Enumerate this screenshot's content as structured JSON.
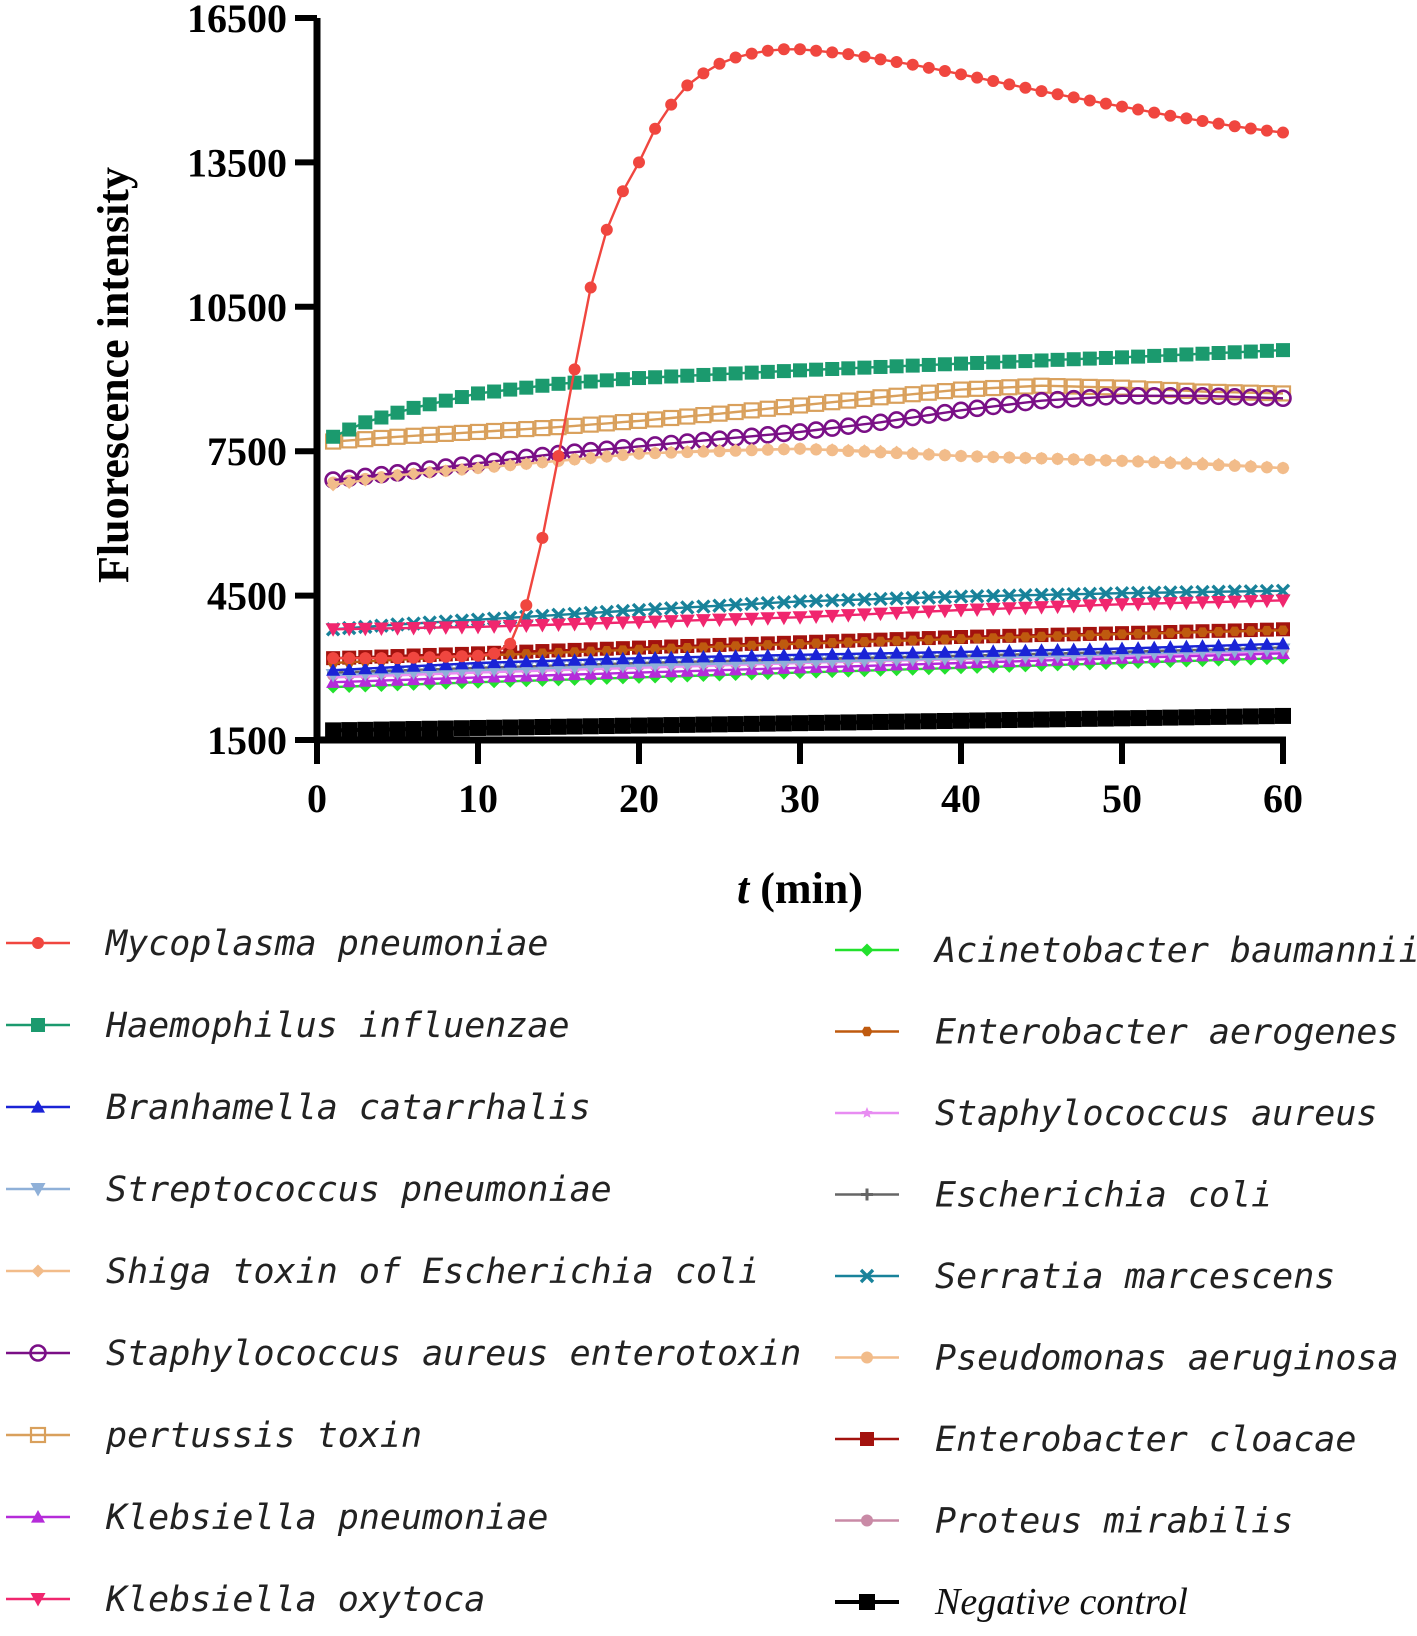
{
  "chart_data": {
    "type": "line",
    "title": "",
    "xlabel_italic": "t",
    "xlabel_rest": " (min)",
    "ylabel": "Fluorescence intensity",
    "xlim": [
      0,
      60
    ],
    "ylim": [
      1500,
      16500
    ],
    "xticks": [
      0,
      10,
      20,
      30,
      40,
      50,
      60
    ],
    "yticks": [
      1500,
      4500,
      7500,
      10500,
      13500,
      16500
    ],
    "grid": false,
    "legend_position": "bottom",
    "x": [
      1,
      2,
      3,
      4,
      5,
      6,
      7,
      8,
      9,
      10,
      11,
      12,
      13,
      14,
      15,
      16,
      17,
      18,
      19,
      20,
      21,
      22,
      23,
      24,
      25,
      26,
      27,
      28,
      29,
      30,
      31,
      32,
      33,
      34,
      35,
      36,
      37,
      38,
      39,
      40,
      41,
      42,
      43,
      44,
      45,
      46,
      47,
      48,
      49,
      50,
      51,
      52,
      53,
      54,
      55,
      56,
      57,
      58,
      59,
      60
    ],
    "series": [
      {
        "name": "Mycoplasma pneumoniae",
        "color": "#f0463f",
        "marker": "circle",
        "points": [
          [
            1,
            3200
          ],
          [
            5,
            3200
          ],
          [
            10,
            3250
          ],
          [
            11,
            3300
          ],
          [
            12,
            3500
          ],
          [
            13,
            4300
          ],
          [
            14,
            5700
          ],
          [
            15,
            7400
          ],
          [
            16,
            9200
          ],
          [
            17,
            10900
          ],
          [
            18,
            12100
          ],
          [
            19,
            12900
          ],
          [
            20,
            13500
          ],
          [
            21,
            14200
          ],
          [
            22,
            14700
          ],
          [
            23,
            15100
          ],
          [
            24,
            15350
          ],
          [
            25,
            15550
          ],
          [
            26,
            15680
          ],
          [
            27,
            15760
          ],
          [
            28,
            15820
          ],
          [
            29,
            15850
          ],
          [
            30,
            15850
          ],
          [
            31,
            15820
          ],
          [
            33,
            15750
          ],
          [
            35,
            15640
          ],
          [
            37,
            15530
          ],
          [
            39,
            15400
          ],
          [
            41,
            15260
          ],
          [
            43,
            15120
          ],
          [
            45,
            14980
          ],
          [
            47,
            14850
          ],
          [
            49,
            14720
          ],
          [
            51,
            14600
          ],
          [
            53,
            14470
          ],
          [
            55,
            14360
          ],
          [
            57,
            14250
          ],
          [
            59,
            14160
          ],
          [
            60,
            14120
          ]
        ]
      },
      {
        "name": "Haemophilus influenzae",
        "color": "#1b9a6e",
        "marker": "square",
        "points": [
          [
            1,
            7800
          ],
          [
            3,
            8100
          ],
          [
            6,
            8400
          ],
          [
            10,
            8700
          ],
          [
            15,
            8900
          ],
          [
            20,
            9020
          ],
          [
            30,
            9180
          ],
          [
            40,
            9320
          ],
          [
            50,
            9450
          ],
          [
            60,
            9600
          ]
        ]
      },
      {
        "name": "Branhamella catarrhalis",
        "color": "#1a23d6",
        "marker": "triangle",
        "points": [
          [
            1,
            2950
          ],
          [
            10,
            3100
          ],
          [
            20,
            3200
          ],
          [
            30,
            3270
          ],
          [
            40,
            3330
          ],
          [
            50,
            3400
          ],
          [
            60,
            3500
          ]
        ]
      },
      {
        "name": "Streptococcus pneumoniae",
        "color": "#8fb0d8",
        "marker": "triangle-down",
        "points": [
          [
            1,
            2850
          ],
          [
            10,
            2950
          ],
          [
            20,
            3050
          ],
          [
            30,
            3120
          ],
          [
            40,
            3200
          ],
          [
            50,
            3280
          ],
          [
            60,
            3380
          ]
        ]
      },
      {
        "name": "Shiga toxin of Escherichia coli",
        "color": "#f2bc8a",
        "marker": "diamond",
        "points": [
          [
            1,
            6800
          ],
          [
            5,
            7000
          ],
          [
            10,
            7150
          ],
          [
            15,
            7300
          ],
          [
            20,
            7450
          ],
          [
            25,
            7520
          ],
          [
            30,
            7550
          ],
          [
            35,
            7500
          ],
          [
            40,
            7400
          ],
          [
            45,
            7350
          ],
          [
            50,
            7300
          ],
          [
            55,
            7250
          ],
          [
            60,
            7150
          ]
        ]
      },
      {
        "name": "Staphylococcus aureus enterotoxin",
        "color": "#7a0f86",
        "marker": "circle-open",
        "points": [
          [
            1,
            6900
          ],
          [
            5,
            7050
          ],
          [
            10,
            7250
          ],
          [
            15,
            7450
          ],
          [
            20,
            7600
          ],
          [
            25,
            7750
          ],
          [
            30,
            7900
          ],
          [
            35,
            8100
          ],
          [
            40,
            8350
          ],
          [
            45,
            8550
          ],
          [
            50,
            8650
          ],
          [
            55,
            8650
          ],
          [
            60,
            8600
          ]
        ]
      },
      {
        "name": "pertussis toxin",
        "color": "#d9a05c",
        "marker": "square-open",
        "points": [
          [
            1,
            7700
          ],
          [
            5,
            7800
          ],
          [
            10,
            7900
          ],
          [
            15,
            8000
          ],
          [
            20,
            8130
          ],
          [
            25,
            8280
          ],
          [
            30,
            8450
          ],
          [
            35,
            8620
          ],
          [
            40,
            8780
          ],
          [
            45,
            8860
          ],
          [
            50,
            8820
          ],
          [
            55,
            8740
          ],
          [
            60,
            8700
          ]
        ]
      },
      {
        "name": "Klebsiella pneumoniae",
        "color": "#b52bd9",
        "marker": "triangle",
        "points": [
          [
            1,
            2700
          ],
          [
            10,
            2800
          ],
          [
            20,
            2900
          ],
          [
            30,
            3000
          ],
          [
            40,
            3100
          ],
          [
            50,
            3200
          ],
          [
            60,
            3300
          ]
        ]
      },
      {
        "name": "Klebsiella oxytoca",
        "color": "#f0266e",
        "marker": "triangle-down",
        "points": [
          [
            1,
            3800
          ],
          [
            10,
            3850
          ],
          [
            20,
            3950
          ],
          [
            30,
            4050
          ],
          [
            40,
            4200
          ],
          [
            50,
            4320
          ],
          [
            60,
            4400
          ]
        ]
      },
      {
        "name": "Acinetobacter baumannii",
        "color": "#22e12d",
        "marker": "diamond",
        "points": [
          [
            1,
            2600
          ],
          [
            10,
            2700
          ],
          [
            20,
            2800
          ],
          [
            30,
            2900
          ],
          [
            40,
            3000
          ],
          [
            50,
            3100
          ],
          [
            60,
            3200
          ]
        ]
      },
      {
        "name": "Enterobacter aerogenes",
        "color": "#bf5a0f",
        "marker": "hexagon",
        "points": [
          [
            1,
            3100
          ],
          [
            10,
            3250
          ],
          [
            20,
            3380
          ],
          [
            30,
            3500
          ],
          [
            40,
            3600
          ],
          [
            50,
            3700
          ],
          [
            60,
            3780
          ]
        ]
      },
      {
        "name": "Staphylococcus aureus",
        "color": "#e88cf2",
        "marker": "star",
        "points": [
          [
            1,
            2800
          ],
          [
            10,
            2900
          ],
          [
            20,
            3000
          ],
          [
            30,
            3100
          ],
          [
            40,
            3180
          ],
          [
            50,
            3250
          ],
          [
            60,
            3350
          ]
        ]
      },
      {
        "name": "Escherichia coli",
        "color": "#666666",
        "marker": "plus",
        "points": [
          [
            1,
            2900
          ],
          [
            10,
            3000
          ],
          [
            20,
            3100
          ],
          [
            30,
            3180
          ],
          [
            40,
            3250
          ],
          [
            50,
            3330
          ],
          [
            60,
            3420
          ]
        ]
      },
      {
        "name": "Serratia marcescens",
        "color": "#18829a",
        "marker": "x",
        "points": [
          [
            1,
            3800
          ],
          [
            5,
            3900
          ],
          [
            10,
            4000
          ],
          [
            20,
            4200
          ],
          [
            30,
            4380
          ],
          [
            40,
            4480
          ],
          [
            50,
            4550
          ],
          [
            60,
            4600
          ]
        ]
      },
      {
        "name": "Pseudomonas aeruginosa",
        "color": "#f2bc8a",
        "marker": "circle",
        "points": [
          [
            1,
            6850
          ],
          [
            5,
            7000
          ],
          [
            10,
            7150
          ],
          [
            20,
            7450
          ],
          [
            30,
            7550
          ],
          [
            40,
            7400
          ],
          [
            50,
            7300
          ],
          [
            60,
            7150
          ]
        ]
      },
      {
        "name": "Enterobacter cloacae",
        "color": "#a3120e",
        "marker": "square",
        "points": [
          [
            1,
            3200
          ],
          [
            10,
            3300
          ],
          [
            20,
            3420
          ],
          [
            30,
            3530
          ],
          [
            40,
            3640
          ],
          [
            50,
            3720
          ],
          [
            60,
            3800
          ]
        ]
      },
      {
        "name": "Proteus mirabilis",
        "color": "#c98aa6",
        "marker": "circle",
        "points": [
          [
            1,
            2850
          ],
          [
            10,
            2950
          ],
          [
            20,
            3050
          ],
          [
            30,
            3130
          ],
          [
            40,
            3220
          ],
          [
            50,
            3300
          ],
          [
            60,
            3380
          ]
        ]
      },
      {
        "name": "Negative control",
        "color": "#000000",
        "marker": "square",
        "points": [
          [
            1,
            1700
          ],
          [
            10,
            1750
          ],
          [
            20,
            1800
          ],
          [
            30,
            1850
          ],
          [
            40,
            1900
          ],
          [
            50,
            1950
          ],
          [
            60,
            2000
          ]
        ]
      }
    ]
  }
}
